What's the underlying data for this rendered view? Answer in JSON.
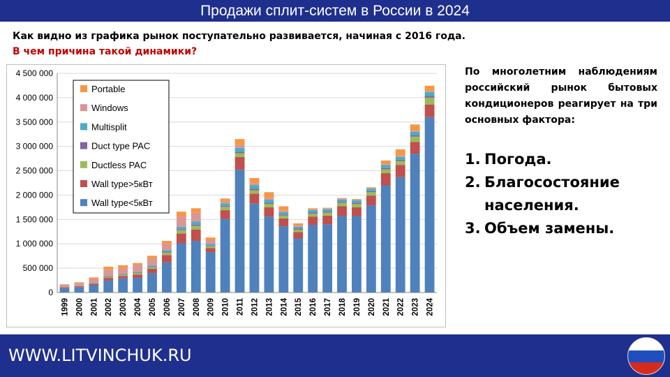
{
  "header": {
    "title": "Продажи сплит-систем в России в 2024"
  },
  "intro": {
    "line1": "Как видно из графика рынок поступательно развивается, начиная с 2016 года.",
    "question": "В чем причина такой динамики?"
  },
  "side": {
    "paragraph": "По многолетним наблюдениям российский рынок бытовых кондиционеров реагирует на три основных фактора:",
    "factors": [
      {
        "num": "1.",
        "text": "Погода."
      },
      {
        "num": "2.",
        "text": "Благосостояние населения."
      },
      {
        "num": "3.",
        "text": "Объем замены."
      }
    ]
  },
  "footer": {
    "site": "WWW.LITVINCHUK.RU"
  },
  "colors": {
    "bar_blue": "#4f81bd",
    "bar_red": "#c0504d",
    "bar_green": "#9bbb59",
    "bar_purple": "#8064a2",
    "bar_teal": "#4bacc6",
    "bar_pink": "#d99694",
    "bar_orange": "#f79646",
    "banner": "#1f2f8e"
  },
  "chart_data": {
    "type": "bar",
    "stacked": true,
    "categories": [
      "1999",
      "2000",
      "2001",
      "2002",
      "2003",
      "2004",
      "2005",
      "2006",
      "2007",
      "2008",
      "2009",
      "2010",
      "2011",
      "2012",
      "2013",
      "2014",
      "2015",
      "2016",
      "2017",
      "2018",
      "2019",
      "2020",
      "2021",
      "2022",
      "2023",
      "2024"
    ],
    "ylim": [
      0,
      4500000
    ],
    "yticks": [
      "0",
      "500 000",
      "1 000 000",
      "1 500 000",
      "2 000 000",
      "2 500 000",
      "3 000 000",
      "3 500 000",
      "4 000 000",
      "4 500 000"
    ],
    "grid": true,
    "legend_position": "top-left",
    "series": [
      {
        "name": "Wall type<5кВт",
        "color": "#4f81bd",
        "values": [
          90000,
          110000,
          150000,
          250000,
          290000,
          300000,
          400000,
          620000,
          1010000,
          1060000,
          830000,
          1510000,
          2520000,
          1830000,
          1560000,
          1360000,
          1110000,
          1390000,
          1400000,
          1570000,
          1570000,
          1790000,
          2200000,
          2370000,
          2850000,
          3600000
        ]
      },
      {
        "name": "Wall type>5кВт",
        "color": "#c0504d",
        "values": [
          20000,
          20000,
          30000,
          50000,
          50000,
          70000,
          90000,
          150000,
          200000,
          230000,
          80000,
          180000,
          260000,
          200000,
          190000,
          160000,
          130000,
          170000,
          180000,
          200000,
          180000,
          200000,
          250000,
          250000,
          240000,
          260000
        ]
      },
      {
        "name": "Ductless PAC",
        "color": "#9bbb59",
        "values": [
          5000,
          5000,
          10000,
          20000,
          20000,
          30000,
          30000,
          50000,
          70000,
          80000,
          40000,
          70000,
          80000,
          70000,
          70000,
          60000,
          50000,
          60000,
          60000,
          70000,
          70000,
          70000,
          80000,
          80000,
          110000,
          140000
        ]
      },
      {
        "name": "Duct type PAC",
        "color": "#8064a2",
        "values": [
          3000,
          3000,
          5000,
          10000,
          10000,
          10000,
          15000,
          20000,
          20000,
          25000,
          15000,
          20000,
          30000,
          30000,
          25000,
          20000,
          20000,
          20000,
          20000,
          20000,
          20000,
          20000,
          25000,
          25000,
          30000,
          35000
        ]
      },
      {
        "name": "Multisplit",
        "color": "#4bacc6",
        "values": [
          2000,
          2000,
          5000,
          10000,
          10000,
          15000,
          20000,
          30000,
          50000,
          60000,
          30000,
          50000,
          80000,
          70000,
          60000,
          50000,
          40000,
          50000,
          50000,
          50000,
          50000,
          50000,
          60000,
          60000,
          70000,
          80000
        ]
      },
      {
        "name": "Windows",
        "color": "#d99694",
        "values": [
          40000,
          50000,
          80000,
          130000,
          120000,
          140000,
          140000,
          130000,
          210000,
          180000,
          80000,
          40000,
          60000,
          40000,
          40000,
          30000,
          20000,
          20000,
          20000,
          20000,
          20000,
          20000,
          20000,
          20000,
          20000,
          20000
        ]
      },
      {
        "name": "Portable",
        "color": "#f79646",
        "values": [
          10000,
          20000,
          30000,
          60000,
          60000,
          40000,
          60000,
          60000,
          100000,
          95000,
          55000,
          60000,
          120000,
          110000,
          115000,
          90000,
          50000,
          20000,
          10000,
          10000,
          10000,
          10000,
          75000,
          135000,
          130000,
          110000
        ]
      }
    ]
  }
}
